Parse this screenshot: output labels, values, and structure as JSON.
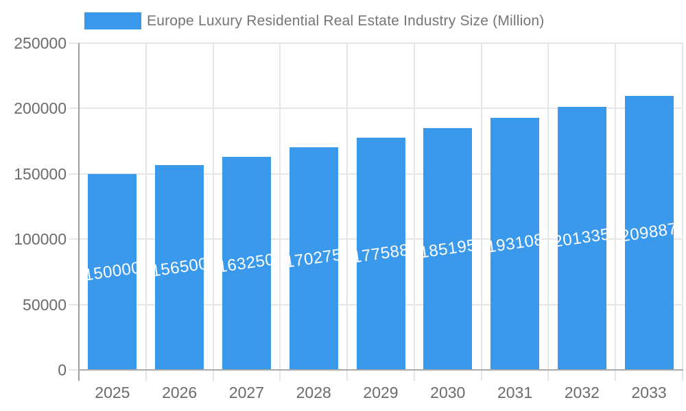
{
  "legend": {
    "label": "Europe Luxury Residential Real Estate Industry Size (Million)"
  },
  "chart_data": {
    "type": "bar",
    "title": "Europe Luxury Residential Real Estate Industry Size (Million)",
    "categories": [
      "2025",
      "2026",
      "2027",
      "2028",
      "2029",
      "2030",
      "2031",
      "2032",
      "2033"
    ],
    "values": [
      150000,
      156500,
      163250,
      170275,
      177588,
      185195,
      193108,
      201335,
      209887
    ],
    "bar_value_labels": [
      "150000",
      "156500",
      "163250",
      "170275",
      "177588",
      "185195",
      "193108",
      "201335",
      "209887"
    ],
    "xlabel": "",
    "ylabel": "",
    "ylim": [
      0,
      250000
    ],
    "y_ticks": [
      0,
      50000,
      100000,
      150000,
      200000,
      250000
    ],
    "y_tick_labels": [
      "0",
      "50000",
      "100000",
      "150000",
      "200000",
      "250000"
    ],
    "grid": "horizontal gridlines at each y tick; vertical gridlines at category boundaries",
    "legend_position": "top-left",
    "bar_label_position": "inside-center, slightly rotated",
    "colors": {
      "bar": "#3B99EC",
      "bar_label_text": "#FFFFFF",
      "title_text": "#757575",
      "axis_text": "#6B6B6B",
      "gridline": "#E6E6E6",
      "axis_line": "#A9A9A9",
      "y_axis_line": "#9E9E9E",
      "background": "#FFFFFF"
    }
  }
}
